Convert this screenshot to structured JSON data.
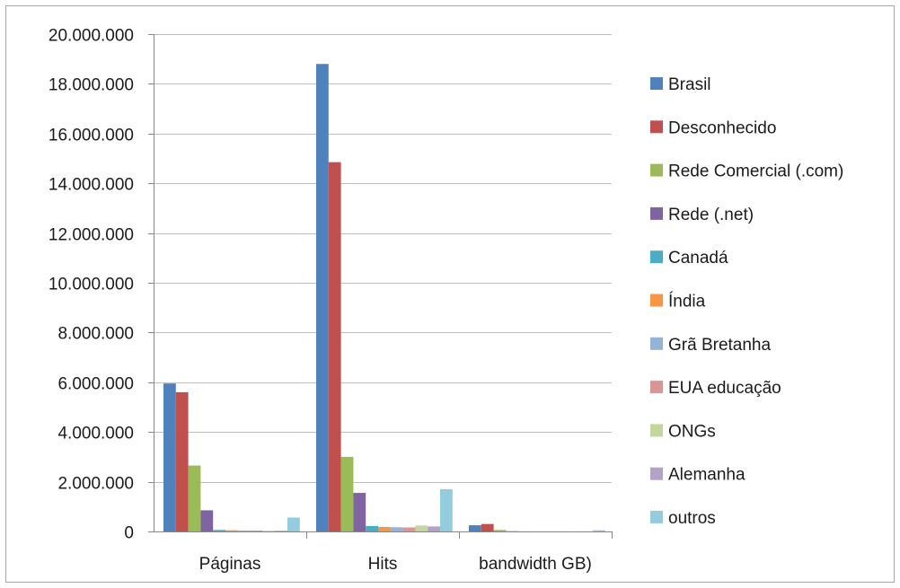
{
  "chart_data": {
    "type": "bar",
    "title": "",
    "xlabel": "",
    "ylabel": "",
    "categories": [
      "Páginas",
      "Hits",
      "bandwidth GB)"
    ],
    "ylim": [
      0,
      20000000
    ],
    "yticks": [
      0,
      2000000,
      4000000,
      6000000,
      8000000,
      10000000,
      12000000,
      14000000,
      16000000,
      18000000,
      20000000
    ],
    "ytick_labels": [
      "0",
      "2.000.000",
      "4.000.000",
      "6.000.000",
      "8.000.000",
      "10.000.000",
      "12.000.000",
      "14.000.000",
      "16.000.000",
      "18.000.000",
      "20.000.000"
    ],
    "grid": true,
    "legend_position": "right",
    "series": [
      {
        "name": "Brasil",
        "color": "#4f81bd",
        "values": [
          5950000,
          18800000,
          250000
        ]
      },
      {
        "name": "Desconhecido",
        "color": "#c0504d",
        "values": [
          5600000,
          14850000,
          300000
        ]
      },
      {
        "name": "Rede Comercial (.com)",
        "color": "#9bbb59",
        "values": [
          2650000,
          3000000,
          60000
        ]
      },
      {
        "name": "Rede (.net)",
        "color": "#8064a2",
        "values": [
          850000,
          1550000,
          10000
        ]
      },
      {
        "name": "Canadá",
        "color": "#4bacc6",
        "values": [
          60000,
          220000,
          5000
        ]
      },
      {
        "name": "Índia",
        "color": "#f79646",
        "values": [
          50000,
          180000,
          5000
        ]
      },
      {
        "name": "Grã Bretanha",
        "color": "#95b3d7",
        "values": [
          40000,
          170000,
          5000
        ]
      },
      {
        "name": "EUA educação",
        "color": "#d99694",
        "values": [
          40000,
          160000,
          5000
        ]
      },
      {
        "name": "ONGs",
        "color": "#c3d69b",
        "values": [
          30000,
          240000,
          5000
        ]
      },
      {
        "name": "Alemanha",
        "color": "#b2a2c7",
        "values": [
          30000,
          200000,
          5000
        ]
      },
      {
        "name": "outros",
        "color": "#93cddd",
        "values": [
          560000,
          1700000,
          50000
        ]
      }
    ]
  }
}
